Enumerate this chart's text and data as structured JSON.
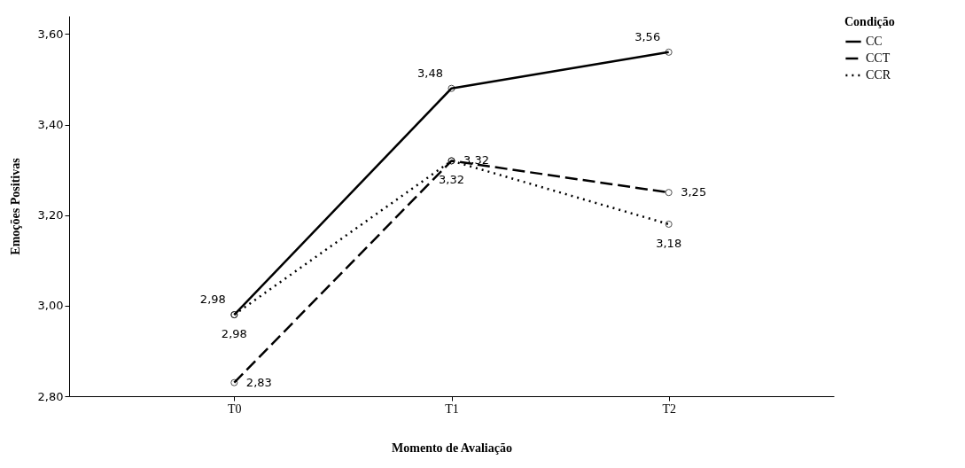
{
  "chart_data": {
    "type": "line",
    "xlabel": "Momento de Avaliação",
    "ylabel": "Emoções Positivas",
    "legend_title": "Condição",
    "legend": "top right",
    "grid": false,
    "marker": "circle",
    "categories": [
      "T0",
      "T1",
      "T2"
    ],
    "ylim": [
      2.8,
      3.64
    ],
    "yticks": [
      {
        "value": 2.8,
        "label": "2,80"
      },
      {
        "value": 3.0,
        "label": "3,00"
      },
      {
        "value": 3.2,
        "label": "3,20"
      },
      {
        "value": 3.4,
        "label": "3,40"
      },
      {
        "value": 3.6,
        "label": "3,60"
      }
    ],
    "series": [
      {
        "name": "CC",
        "color": "#000000",
        "line_style": "solid",
        "values": [
          2.98,
          3.48,
          3.56
        ],
        "value_labels": [
          "2,98",
          "3,48",
          "3,56"
        ]
      },
      {
        "name": "CCT",
        "color": "#000000",
        "line_style": "dashed",
        "values": [
          2.83,
          3.32,
          3.25
        ],
        "value_labels": [
          "2,83",
          "3,32",
          "3,25"
        ]
      },
      {
        "name": "CCR",
        "color": "#000000",
        "line_style": "dotted",
        "values": [
          2.98,
          3.32,
          3.18
        ],
        "value_labels": [
          "2,98",
          "3,32",
          "3,18"
        ]
      }
    ]
  }
}
